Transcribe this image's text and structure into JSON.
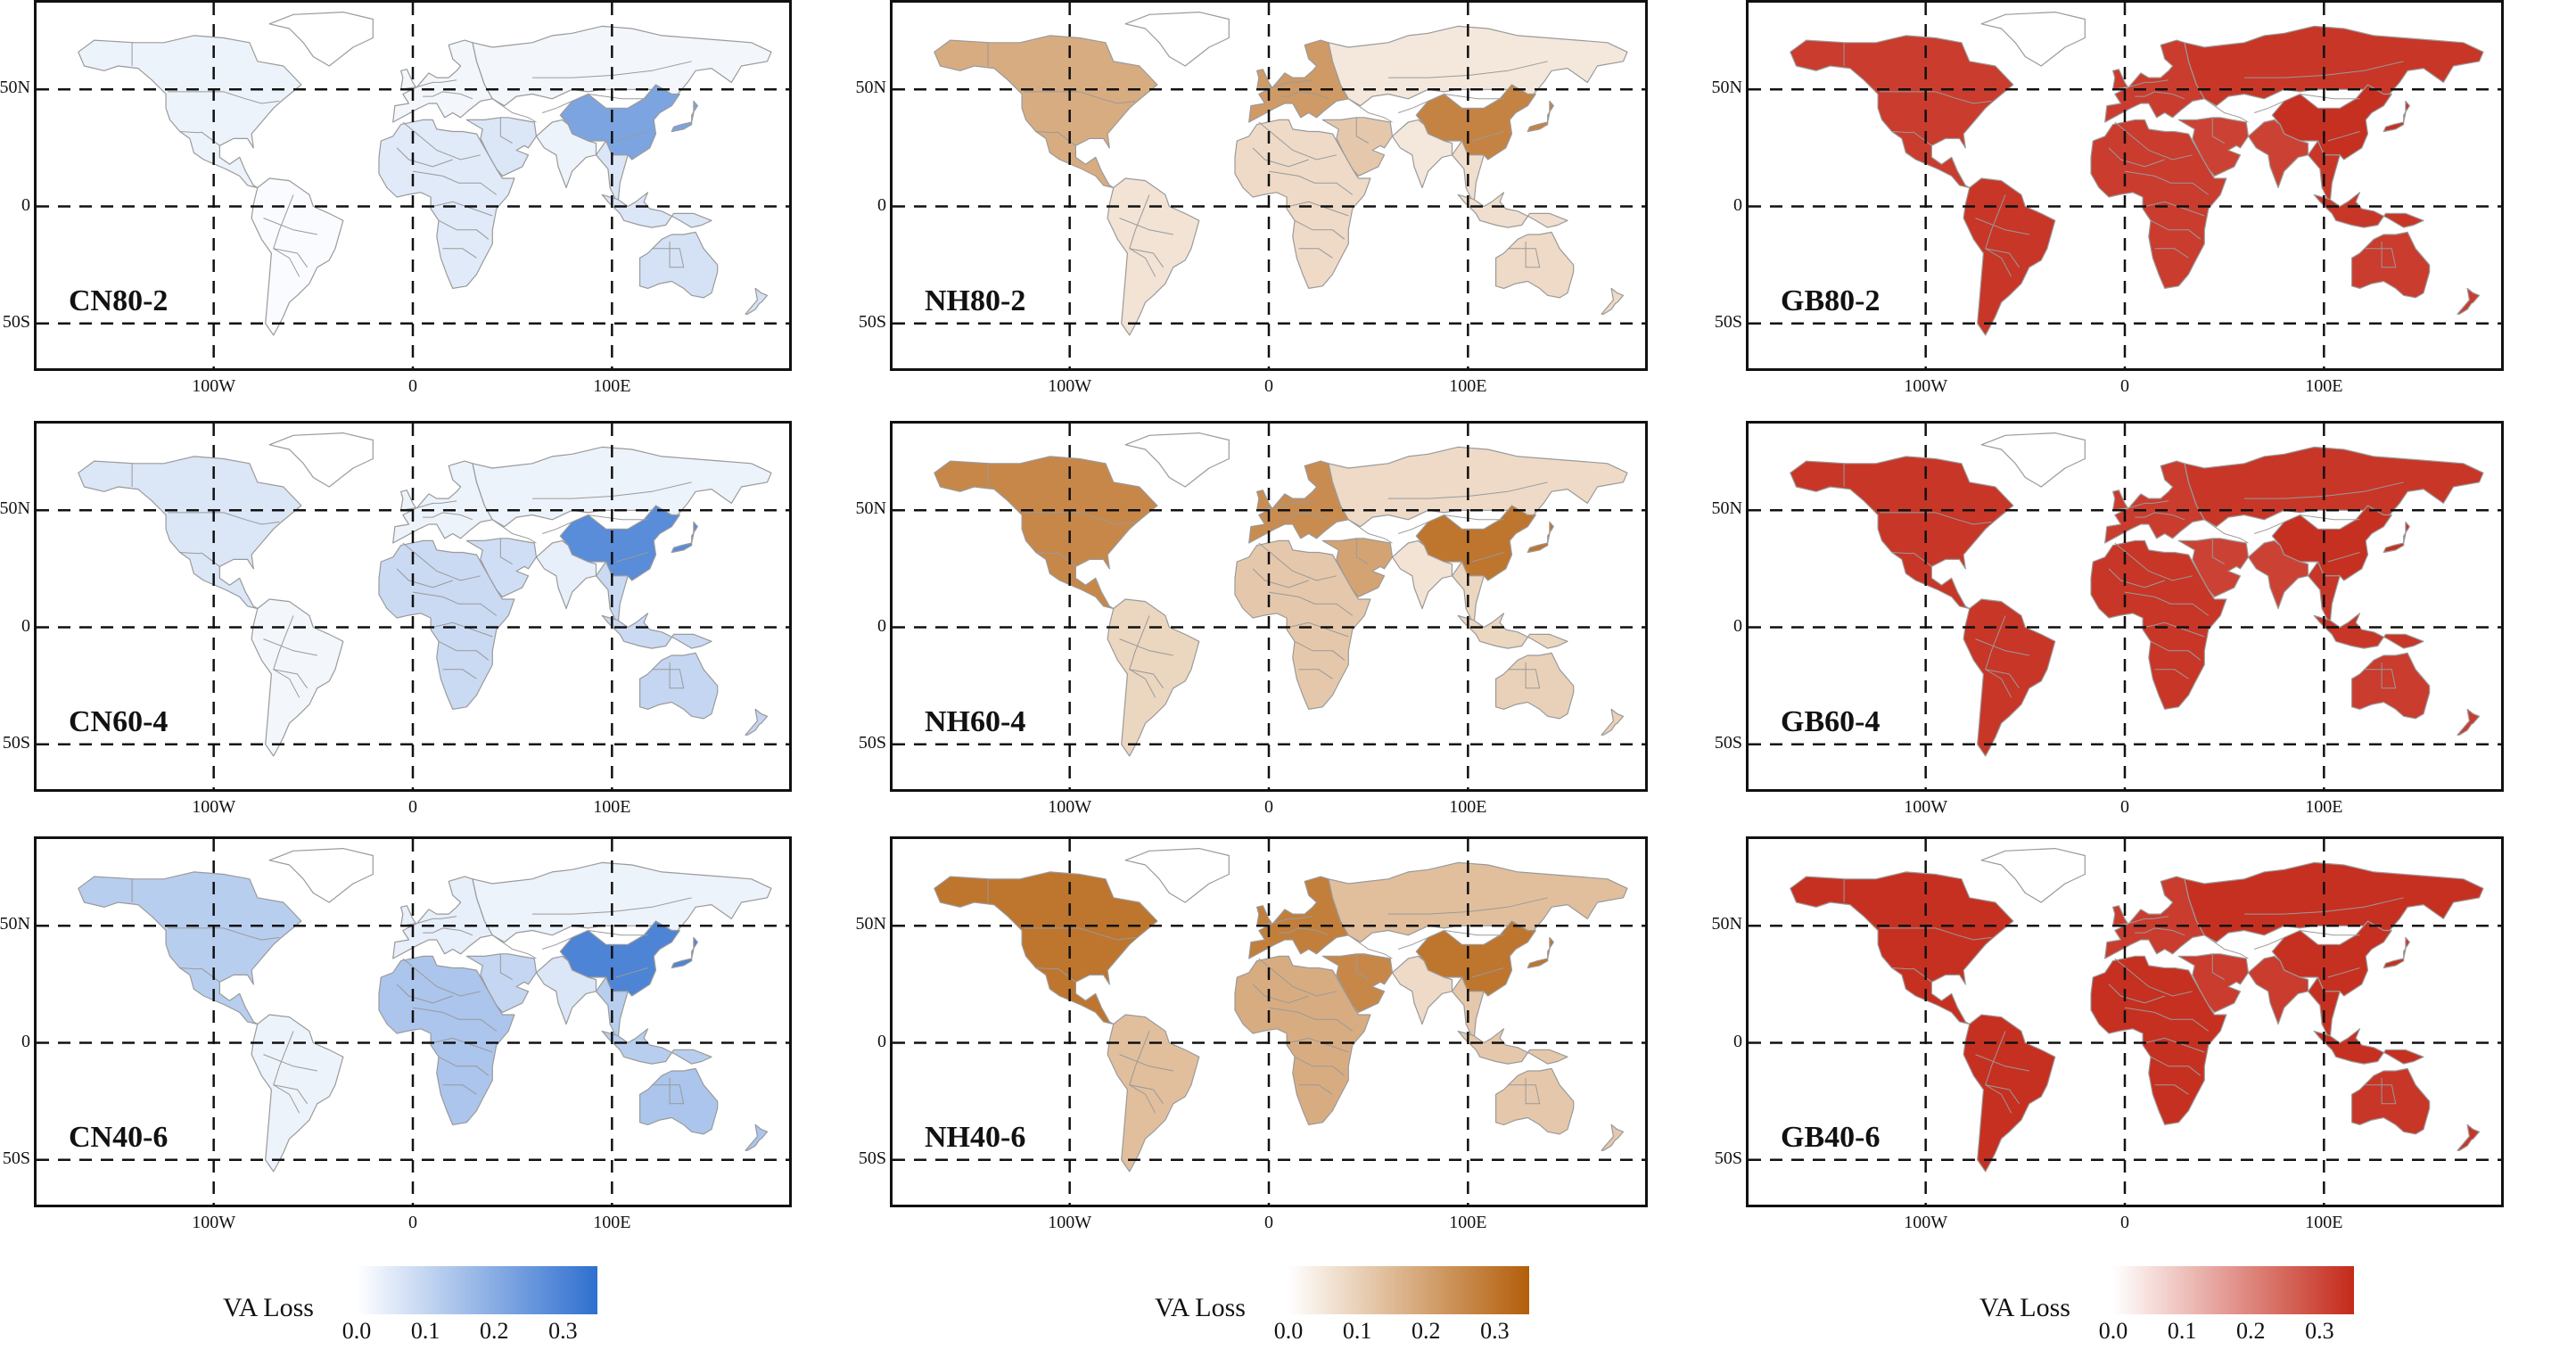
{
  "axes": {
    "y_ticks": [
      "50N",
      "0",
      "50S"
    ],
    "x_ticks": [
      "100W",
      "0",
      "100E"
    ]
  },
  "panels": [
    {
      "label": "CN80-2",
      "scheme": "blue",
      "levels": {
        "china": 0.22,
        "na": 0.03,
        "sa": 0.01,
        "eu": 0.02,
        "africa": 0.05,
        "mideast": 0.06,
        "russia": 0.02,
        "india": 0.03,
        "sea": 0.06,
        "australia": 0.07
      }
    },
    {
      "label": "NH80-2",
      "scheme": "orange",
      "levels": {
        "china": 0.27,
        "na": 0.18,
        "sa": 0.06,
        "eu": 0.22,
        "africa": 0.08,
        "mideast": 0.12,
        "russia": 0.05,
        "india": 0.05,
        "sea": 0.07,
        "australia": 0.08
      }
    },
    {
      "label": "GB80-2",
      "scheme": "red",
      "levels": {
        "china": 0.34,
        "na": 0.32,
        "sa": 0.33,
        "eu": 0.32,
        "africa": 0.32,
        "mideast": 0.31,
        "russia": 0.33,
        "india": 0.31,
        "sea": 0.33,
        "australia": 0.32
      }
    },
    {
      "label": "CN60-4",
      "scheme": "blue",
      "levels": {
        "china": 0.28,
        "na": 0.06,
        "sa": 0.02,
        "eu": 0.03,
        "africa": 0.09,
        "mideast": 0.08,
        "russia": 0.03,
        "india": 0.04,
        "sea": 0.09,
        "australia": 0.1
      }
    },
    {
      "label": "NH60-4",
      "scheme": "orange",
      "levels": {
        "china": 0.3,
        "na": 0.26,
        "sa": 0.09,
        "eu": 0.25,
        "africa": 0.12,
        "mideast": 0.2,
        "russia": 0.08,
        "india": 0.06,
        "sea": 0.09,
        "australia": 0.1
      }
    },
    {
      "label": "GB60-4",
      "scheme": "red",
      "levels": {
        "china": 0.34,
        "na": 0.33,
        "sa": 0.33,
        "eu": 0.32,
        "africa": 0.33,
        "mideast": 0.31,
        "russia": 0.33,
        "india": 0.31,
        "sea": 0.33,
        "australia": 0.32
      }
    },
    {
      "label": "CN40-6",
      "scheme": "blue",
      "levels": {
        "china": 0.3,
        "na": 0.12,
        "sa": 0.03,
        "eu": 0.04,
        "africa": 0.14,
        "mideast": 0.1,
        "russia": 0.03,
        "india": 0.06,
        "sea": 0.12,
        "australia": 0.14
      }
    },
    {
      "label": "NH40-6",
      "scheme": "orange",
      "levels": {
        "china": 0.3,
        "na": 0.3,
        "sa": 0.14,
        "eu": 0.28,
        "africa": 0.18,
        "mideast": 0.26,
        "russia": 0.14,
        "india": 0.08,
        "sea": 0.12,
        "australia": 0.12
      }
    },
    {
      "label": "GB40-6",
      "scheme": "red",
      "levels": {
        "china": 0.34,
        "na": 0.34,
        "sa": 0.34,
        "eu": 0.32,
        "africa": 0.34,
        "mideast": 0.32,
        "russia": 0.34,
        "india": 0.32,
        "sea": 0.34,
        "australia": 0.33
      }
    }
  ],
  "legends": [
    {
      "title": "VA Loss",
      "scheme": "blue",
      "ticks": [
        "0.0",
        "0.1",
        "0.2",
        "0.3"
      ]
    },
    {
      "title": "VA Loss",
      "scheme": "orange",
      "ticks": [
        "0.0",
        "0.1",
        "0.2",
        "0.3"
      ]
    },
    {
      "title": "VA Loss",
      "scheme": "red",
      "ticks": [
        "0.0",
        "0.1",
        "0.2",
        "0.3"
      ]
    }
  ],
  "colors": {
    "blue": {
      "low": "#ffffff",
      "high": "#2f6fcf"
    },
    "orange": {
      "low": "#ffffff",
      "high": "#b35e0a"
    },
    "red": {
      "low": "#ffffff",
      "high": "#c42a1a"
    },
    "border": "#9a9a9a",
    "frame": "#111111"
  }
}
